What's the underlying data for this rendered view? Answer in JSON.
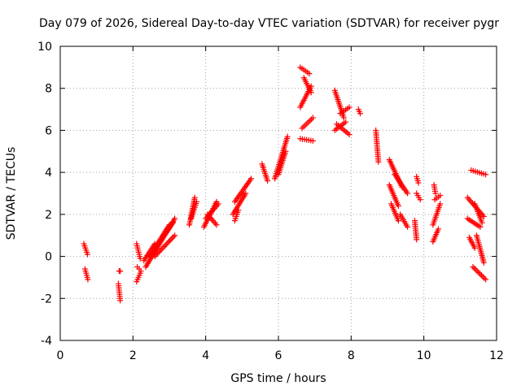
{
  "chart_data": {
    "type": "scatter",
    "title": "Day 079 of 2026, Sidereal Day-to-day VTEC variation (SDTVAR) for receiver pygr",
    "xlabel": "GPS time / hours",
    "ylabel": "SDTVAR / TECUs",
    "xlim": [
      0,
      12
    ],
    "ylim": [
      -4,
      10
    ],
    "xticks": [
      "0",
      "2",
      "4",
      "6",
      "8",
      "10",
      "12"
    ],
    "yticks": [
      "-4",
      "-2",
      "0",
      "2",
      "4",
      "6",
      "8",
      "10"
    ],
    "grid": true,
    "marker": "+",
    "color": "#ff0000",
    "tracks": [
      {
        "x0": 0.65,
        "x1": 0.75,
        "y0": 0.6,
        "y1": 0.1
      },
      {
        "x0": 0.68,
        "x1": 0.76,
        "y0": -0.6,
        "y1": -1.1
      },
      {
        "x0": 1.62,
        "x1": 1.65,
        "y0": -0.7,
        "y1": -0.7
      },
      {
        "x0": 1.6,
        "x1": 1.65,
        "y0": -1.3,
        "y1": -2.1
      },
      {
        "x0": 2.1,
        "x1": 2.2,
        "y0": 0.6,
        "y1": -0.1
      },
      {
        "x0": 2.12,
        "x1": 2.22,
        "y0": -0.5,
        "y1": -0.7
      },
      {
        "x0": 2.1,
        "x1": 2.2,
        "y0": -1.2,
        "y1": -0.8
      },
      {
        "x0": 2.35,
        "x1": 3.15,
        "y0": -0.5,
        "y1": 1.8
      },
      {
        "x0": 2.45,
        "x1": 3.1,
        "y0": 0.0,
        "y1": 1.6
      },
      {
        "x0": 2.6,
        "x1": 3.0,
        "y0": 0.4,
        "y1": 1.5
      },
      {
        "x0": 2.6,
        "x1": 3.15,
        "y0": 0.0,
        "y1": 1.0
      },
      {
        "x0": 2.3,
        "x1": 2.6,
        "y0": -0.2,
        "y1": 0.6
      },
      {
        "x0": 3.55,
        "x1": 3.7,
        "y0": 1.5,
        "y1": 2.8
      },
      {
        "x0": 3.6,
        "x1": 3.75,
        "y0": 1.8,
        "y1": 2.6
      },
      {
        "x0": 3.95,
        "x1": 4.3,
        "y0": 1.4,
        "y1": 2.6
      },
      {
        "x0": 4.0,
        "x1": 4.35,
        "y0": 1.8,
        "y1": 2.5
      },
      {
        "x0": 4.05,
        "x1": 4.3,
        "y0": 2.0,
        "y1": 1.5
      },
      {
        "x0": 4.8,
        "x1": 5.25,
        "y0": 2.6,
        "y1": 3.7
      },
      {
        "x0": 4.75,
        "x1": 5.1,
        "y0": 2.0,
        "y1": 3.0
      },
      {
        "x0": 4.8,
        "x1": 4.9,
        "y0": 1.7,
        "y1": 2.2
      },
      {
        "x0": 5.55,
        "x1": 5.7,
        "y0": 4.4,
        "y1": 3.6
      },
      {
        "x0": 5.9,
        "x1": 6.25,
        "y0": 3.7,
        "y1": 5.7
      },
      {
        "x0": 6.0,
        "x1": 6.2,
        "y0": 3.9,
        "y1": 5.0
      },
      {
        "x0": 6.6,
        "x1": 6.85,
        "y0": 9.0,
        "y1": 8.7
      },
      {
        "x0": 6.7,
        "x1": 6.9,
        "y0": 8.5,
        "y1": 7.8
      },
      {
        "x0": 6.6,
        "x1": 6.9,
        "y0": 7.1,
        "y1": 8.1
      },
      {
        "x0": 6.65,
        "x1": 6.95,
        "y0": 6.1,
        "y1": 6.6
      },
      {
        "x0": 6.6,
        "x1": 6.95,
        "y0": 5.6,
        "y1": 5.5
      },
      {
        "x0": 7.55,
        "x1": 7.8,
        "y0": 7.9,
        "y1": 6.6
      },
      {
        "x0": 7.6,
        "x1": 7.95,
        "y0": 6.3,
        "y1": 5.8
      },
      {
        "x0": 7.7,
        "x1": 7.95,
        "y0": 6.8,
        "y1": 7.1
      },
      {
        "x0": 7.55,
        "x1": 7.85,
        "y0": 6.0,
        "y1": 6.4
      },
      {
        "x0": 8.2,
        "x1": 8.25,
        "y0": 7.0,
        "y1": 6.8
      },
      {
        "x0": 8.68,
        "x1": 8.75,
        "y0": 6.0,
        "y1": 4.5
      },
      {
        "x0": 9.05,
        "x1": 9.4,
        "y0": 4.6,
        "y1": 3.3
      },
      {
        "x0": 9.2,
        "x1": 9.55,
        "y0": 3.9,
        "y1": 3.0
      },
      {
        "x0": 9.05,
        "x1": 9.3,
        "y0": 3.4,
        "y1": 2.4
      },
      {
        "x0": 9.1,
        "x1": 9.3,
        "y0": 2.5,
        "y1": 1.7
      },
      {
        "x0": 9.35,
        "x1": 9.55,
        "y0": 2.0,
        "y1": 1.4
      },
      {
        "x0": 9.8,
        "x1": 9.85,
        "y0": 3.8,
        "y1": 3.5
      },
      {
        "x0": 9.8,
        "x1": 9.9,
        "y0": 3.0,
        "y1": 2.7
      },
      {
        "x0": 9.75,
        "x1": 9.8,
        "y0": 1.7,
        "y1": 0.8
      },
      {
        "x0": 10.28,
        "x1": 10.32,
        "y0": 3.4,
        "y1": 3.0
      },
      {
        "x0": 10.25,
        "x1": 10.45,
        "y0": 1.5,
        "y1": 2.5
      },
      {
        "x0": 10.3,
        "x1": 10.45,
        "y0": 2.7,
        "y1": 2.9
      },
      {
        "x0": 10.25,
        "x1": 10.4,
        "y0": 0.7,
        "y1": 1.3
      },
      {
        "x0": 11.3,
        "x1": 11.7,
        "y0": 4.1,
        "y1": 3.9
      },
      {
        "x0": 11.2,
        "x1": 11.65,
        "y0": 2.8,
        "y1": 1.9
      },
      {
        "x0": 11.2,
        "x1": 11.55,
        "y0": 1.8,
        "y1": 1.4
      },
      {
        "x0": 11.4,
        "x1": 11.6,
        "y0": 2.5,
        "y1": 1.6
      },
      {
        "x0": 11.25,
        "x1": 11.4,
        "y0": 0.9,
        "y1": 0.4
      },
      {
        "x0": 11.45,
        "x1": 11.65,
        "y0": 1.0,
        "y1": -0.3
      },
      {
        "x0": 11.35,
        "x1": 11.7,
        "y0": -0.5,
        "y1": -1.1
      }
    ]
  }
}
